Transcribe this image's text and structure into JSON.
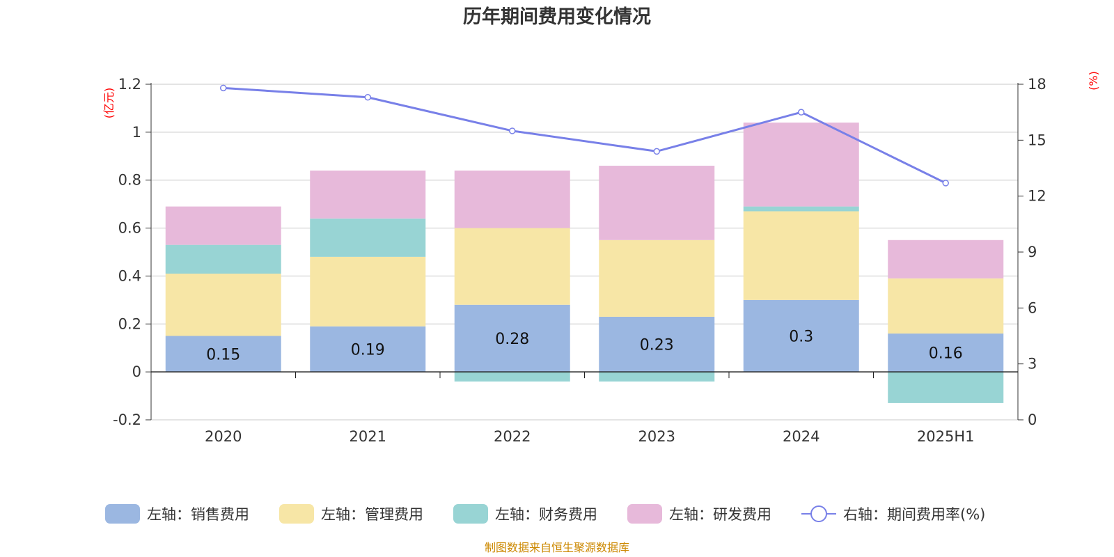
{
  "chart_data": {
    "type": "bar",
    "title": "历年期间费用变化情况",
    "categories": [
      "2020",
      "2021",
      "2022",
      "2023",
      "2024",
      "2025H1"
    ],
    "left_axis": {
      "unit": "(亿元)",
      "ticks": [
        "-0.2",
        "0",
        "0.2",
        "0.4",
        "0.6",
        "0.8",
        "1",
        "1.2"
      ],
      "range": [
        -0.2,
        1.2
      ]
    },
    "right_axis": {
      "unit": "(%)",
      "ticks": [
        "0",
        "3",
        "6",
        "9",
        "12",
        "15",
        "18"
      ],
      "range": [
        0,
        18
      ]
    },
    "grid": true,
    "legend_position": "bottom",
    "series": [
      {
        "name": "左轴：销售费用",
        "color": "#9bb7e1",
        "values": [
          0.15,
          0.19,
          0.28,
          0.23,
          0.3,
          0.16
        ],
        "labels": [
          "0.15",
          "0.19",
          "0.28",
          "0.23",
          "0.3",
          "0.16"
        ]
      },
      {
        "name": "左轴：管理费用",
        "color": "#f7e6a6",
        "values": [
          0.26,
          0.29,
          0.32,
          0.32,
          0.37,
          0.23
        ]
      },
      {
        "name": "左轴：财务费用",
        "color": "#98d4d4",
        "values": [
          0.12,
          0.16,
          -0.04,
          -0.04,
          0.02,
          -0.13
        ]
      },
      {
        "name": "左轴：研发费用",
        "color": "#e7b9da",
        "values": [
          0.16,
          0.2,
          0.24,
          0.31,
          0.35,
          0.16
        ]
      }
    ],
    "line_series": {
      "name": "右轴：期间费用率(%)",
      "color": "#7880e8",
      "values": [
        17.8,
        17.3,
        15.5,
        14.4,
        16.5,
        12.7
      ]
    }
  },
  "source_note": "制图数据来自恒生聚源数据库"
}
